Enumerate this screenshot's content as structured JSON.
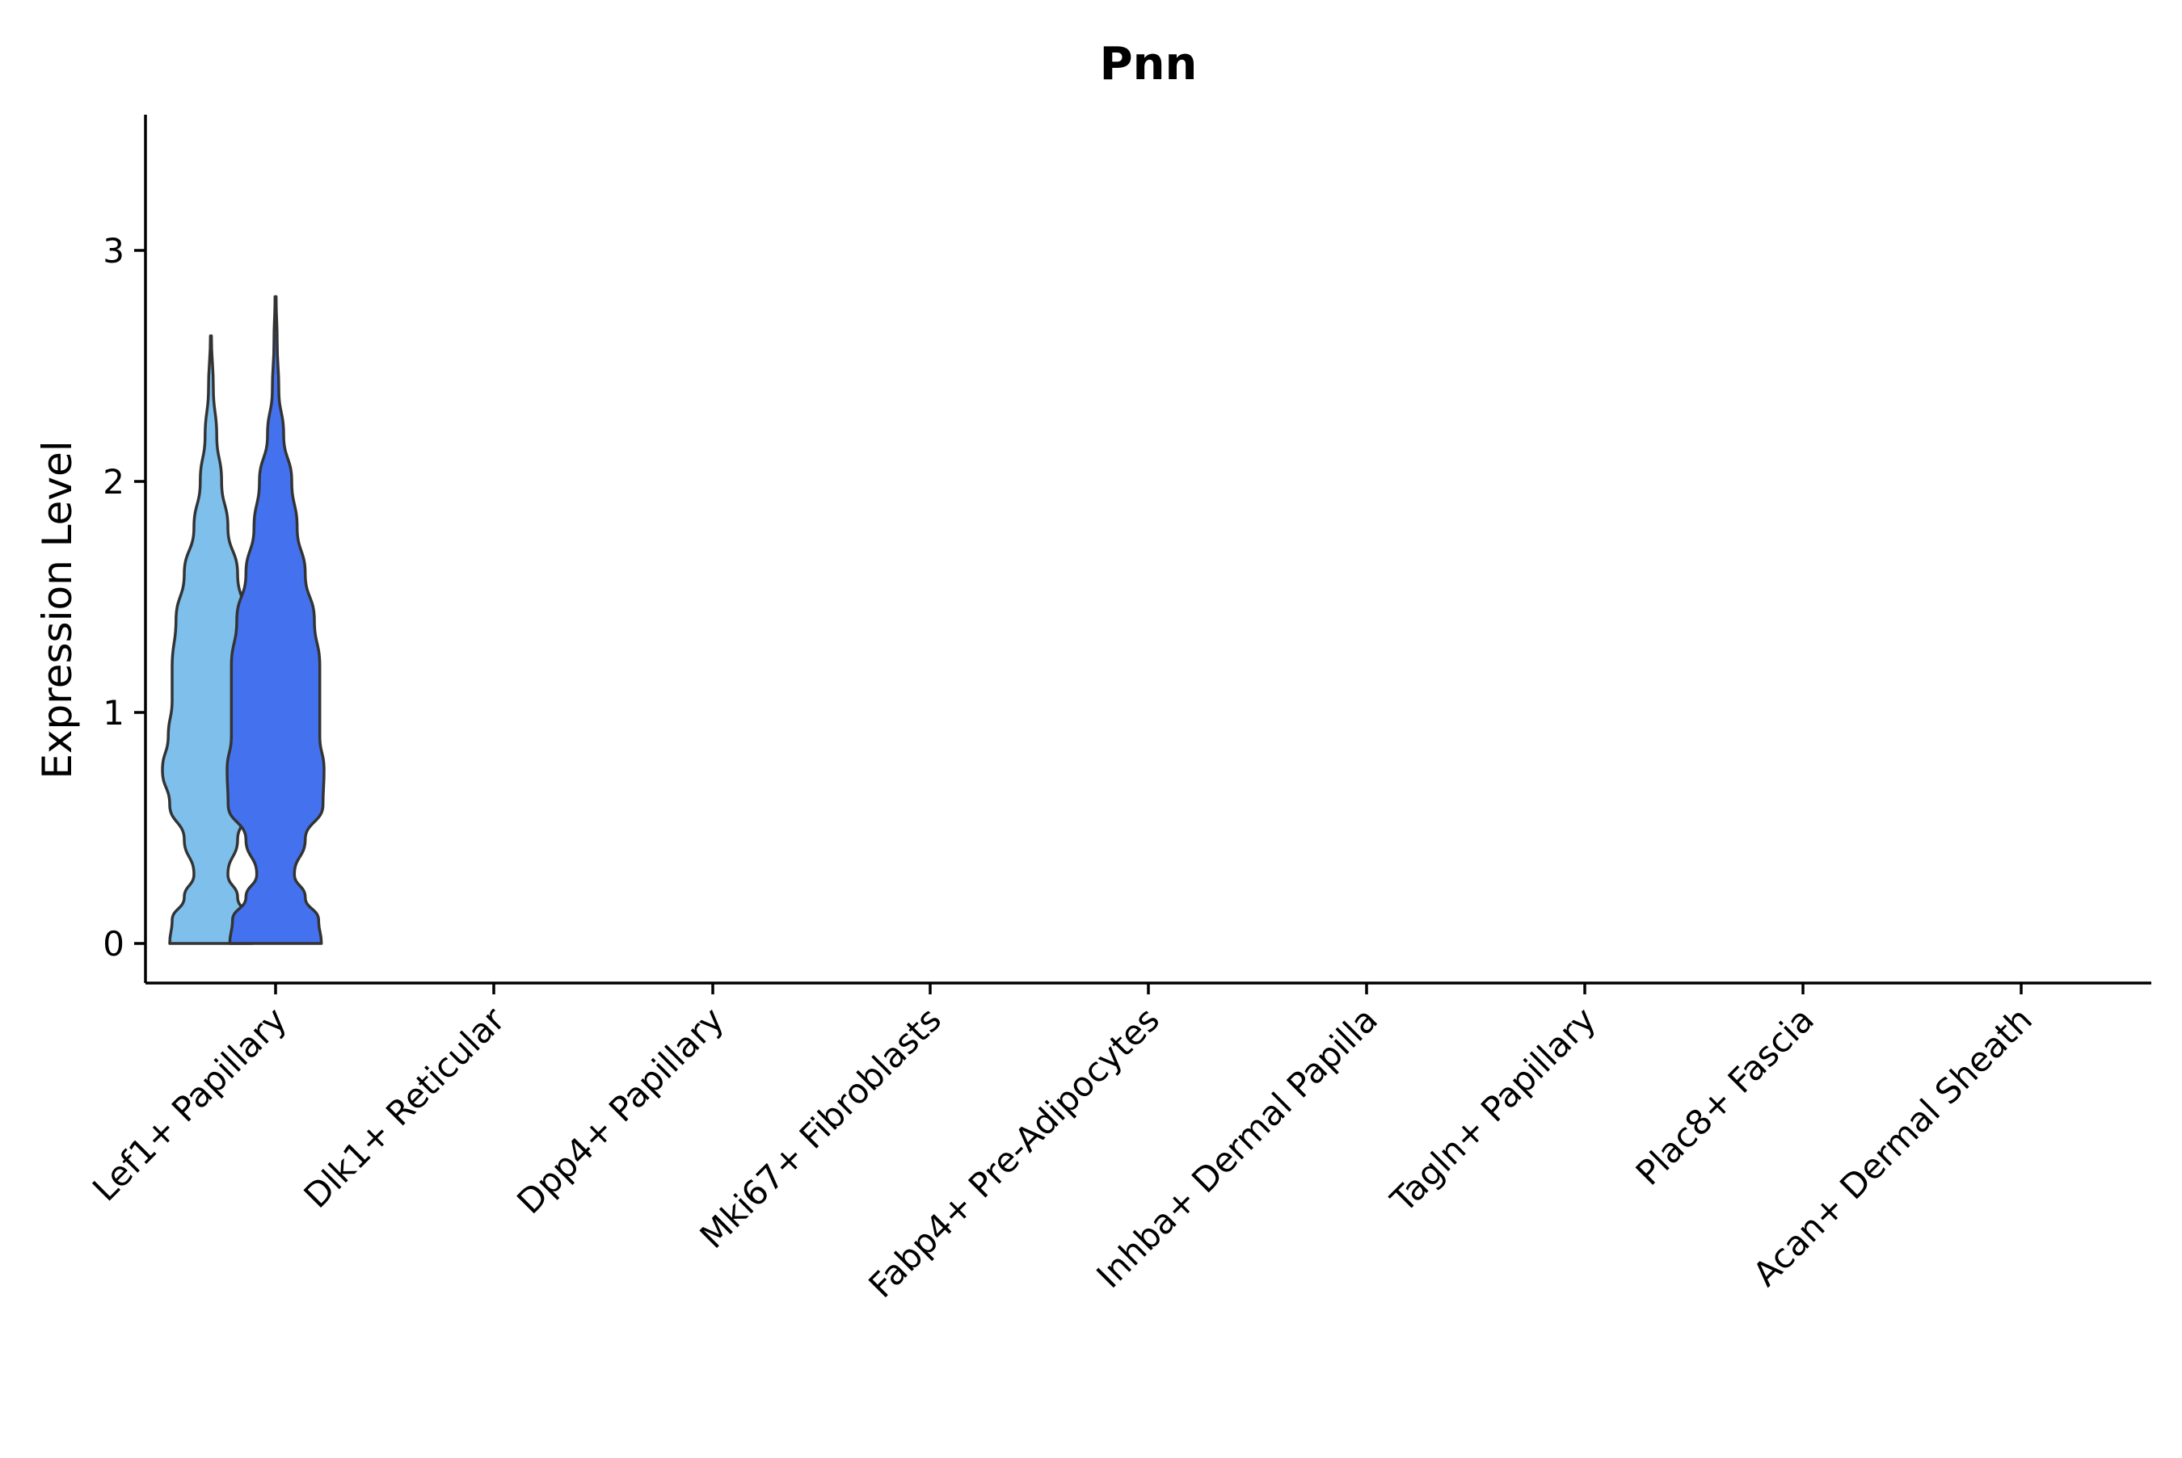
{
  "chart_data": {
    "type": "violin",
    "title": "Pnn",
    "xlabel": "",
    "ylabel": "Expression Level",
    "ylim": [
      -0.17,
      3.6
    ],
    "yticks": [
      0,
      1,
      2,
      3
    ],
    "categories": [
      "Lef1+ Papillary",
      "Dlk1+ Reticular",
      "Dpp4+ Papillary",
      "Mki67+ Fibroblasts",
      "Fabp4+ Pre-Adipocytes",
      "Inhba+ Dermal Papilla",
      "Tagln+ Papillary",
      "Plac8+ Fascia",
      "Acan+ Dermal Sheath"
    ],
    "series_colors": [
      "#7fbfec",
      "#4472ee",
      "#ff3333"
    ],
    "violins": [
      {
        "category": "Lef1+ Papillary",
        "series": 0,
        "max": 2.63,
        "density": [
          [
            0,
            0.85
          ],
          [
            0.1,
            0.8
          ],
          [
            0.2,
            0.55
          ],
          [
            0.3,
            0.35
          ],
          [
            0.45,
            0.55
          ],
          [
            0.6,
            0.85
          ],
          [
            0.75,
            1.0
          ],
          [
            0.9,
            0.88
          ],
          [
            1.05,
            0.8
          ],
          [
            1.2,
            0.8
          ],
          [
            1.4,
            0.72
          ],
          [
            1.6,
            0.55
          ],
          [
            1.8,
            0.35
          ],
          [
            2.0,
            0.22
          ],
          [
            2.2,
            0.12
          ],
          [
            2.4,
            0.05
          ],
          [
            2.63,
            0.01
          ]
        ]
      },
      {
        "category": "Lef1+ Papillary",
        "series": 1,
        "max": 2.8,
        "density": [
          [
            0,
            0.85
          ],
          [
            0.1,
            0.8
          ],
          [
            0.2,
            0.55
          ],
          [
            0.3,
            0.35
          ],
          [
            0.45,
            0.55
          ],
          [
            0.6,
            0.88
          ],
          [
            0.75,
            0.9
          ],
          [
            0.9,
            0.82
          ],
          [
            1.05,
            0.82
          ],
          [
            1.2,
            0.82
          ],
          [
            1.4,
            0.72
          ],
          [
            1.6,
            0.55
          ],
          [
            1.8,
            0.4
          ],
          [
            2.0,
            0.3
          ],
          [
            2.2,
            0.15
          ],
          [
            2.4,
            0.06
          ],
          [
            2.6,
            0.03
          ],
          [
            2.8,
            0.01
          ]
        ]
      }
    ]
  }
}
